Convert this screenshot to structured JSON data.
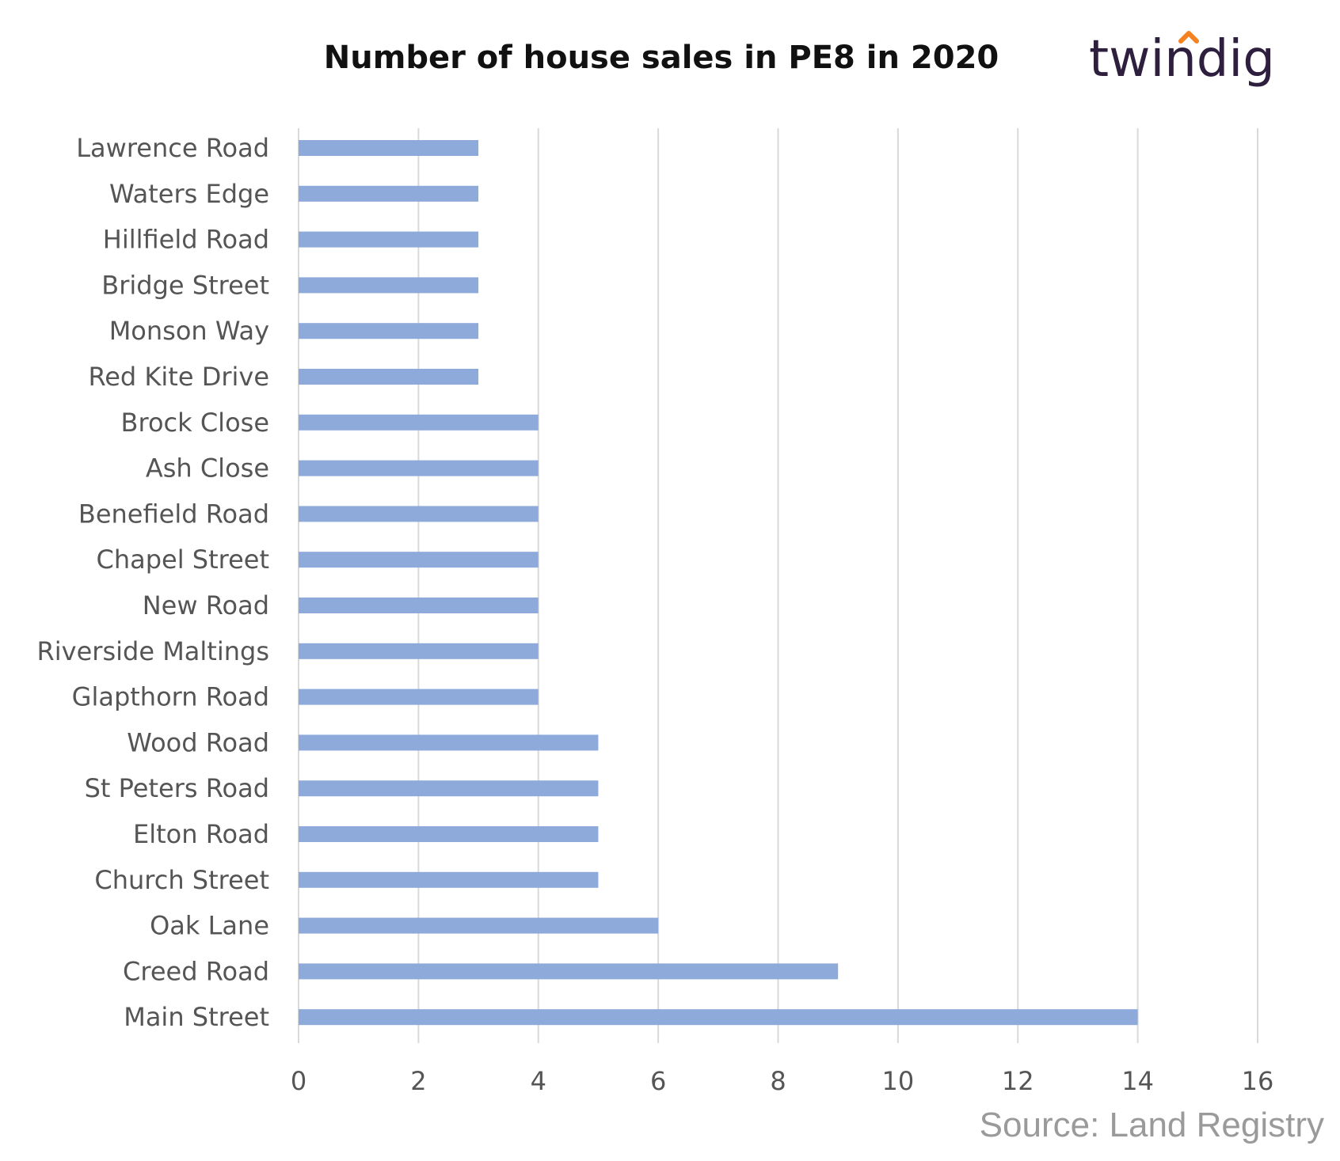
{
  "brand": {
    "logo_text": "twindig",
    "dot_color": "#f58220",
    "text_color": "#2e1f3e"
  },
  "source": "Source: Land Registry",
  "chart_data": {
    "type": "bar",
    "orientation": "horizontal",
    "title": "Number of house sales in PE8 in 2020",
    "xlabel": "",
    "ylabel": "",
    "categories": [
      "Lawrence Road",
      "Waters Edge",
      "Hillfield Road",
      "Bridge Street",
      "Monson Way",
      "Red Kite Drive",
      "Brock Close",
      "Ash Close",
      "Benefield Road",
      "Chapel Street",
      "New Road",
      "Riverside Maltings",
      "Glapthorn Road",
      "Wood Road",
      "St Peters Road",
      "Elton Road",
      "Church Street",
      "Oak Lane",
      "Creed Road",
      "Main Street"
    ],
    "values": [
      3,
      3,
      3,
      3,
      3,
      3,
      4,
      4,
      4,
      4,
      4,
      4,
      4,
      5,
      5,
      5,
      5,
      6,
      9,
      14
    ],
    "xlim": [
      0,
      16
    ],
    "xticks": [
      0,
      2,
      4,
      6,
      8,
      10,
      12,
      14,
      16
    ],
    "grid": "vertical",
    "legend": "none",
    "bar_color": "#8eaadb",
    "grid_color": "#d9d9d9"
  }
}
